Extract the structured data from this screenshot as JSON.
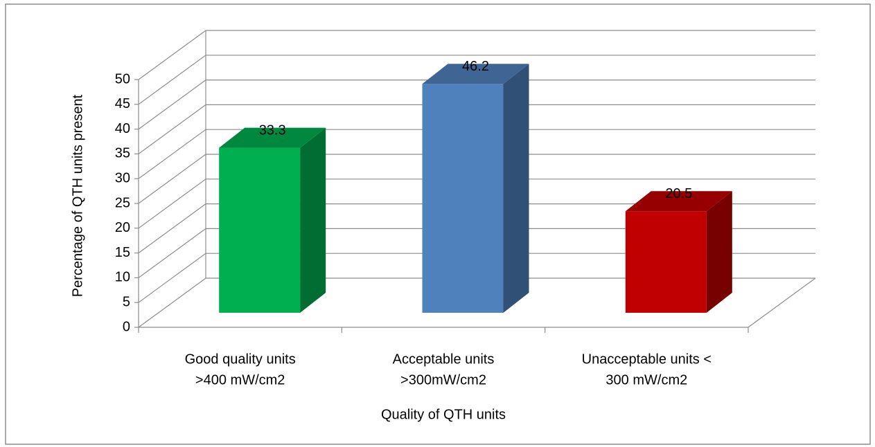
{
  "chart_data": {
    "type": "bar3d",
    "categories": [
      [
        "Good quality units",
        ">400 mW/cm2"
      ],
      [
        "Acceptable units",
        ">300mW/cm2"
      ],
      [
        "Unacceptable units <",
        "300 mW/cm2"
      ]
    ],
    "values": [
      33.3,
      46.2,
      20.5
    ],
    "value_labels": [
      "33.3",
      "46.2",
      "20.5"
    ],
    "colors": [
      "#00b050",
      "#4f81bd",
      "#c00000"
    ],
    "x_label": "Quality of QTH units",
    "y_label": "Percentage of QTH units present",
    "ylim": [
      0,
      50
    ],
    "yticks": [
      0,
      5,
      10,
      15,
      20,
      25,
      30,
      35,
      40,
      45,
      50
    ],
    "grid": true
  }
}
